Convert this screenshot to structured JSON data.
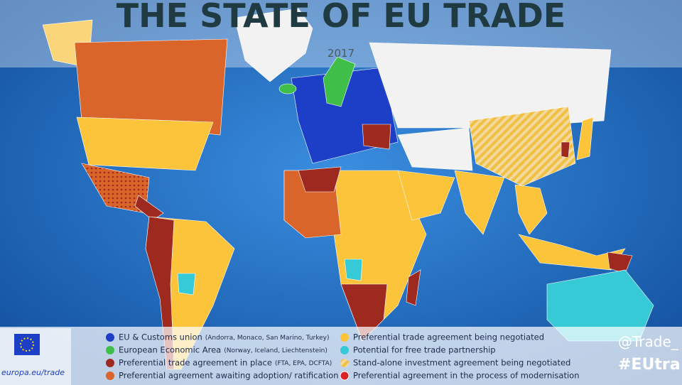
{
  "header": {
    "title": "THE STATE OF EU TRADE",
    "year": "2017"
  },
  "legend": {
    "items": [
      {
        "label": "EU & Customs union",
        "note": "(Andorra, Monaco, San Marino, Turkey)"
      },
      {
        "label": "European Economic Area",
        "note": "(Norway, Iceland, Liechtenstein)"
      },
      {
        "label": "Preferential trade agreement in place",
        "note": "(FTA, EPA, DCFTA)"
      },
      {
        "label": "Preferential agreement awaiting adoption/ ratification"
      },
      {
        "label": "Preferential trade agreement being negotiated"
      },
      {
        "label": "Potential for free trade partnership"
      },
      {
        "label": "Stand-alone investment agreement being negotiated"
      },
      {
        "label": "Preferential agreement in the process of modernisation"
      }
    ]
  },
  "footer": {
    "url": "europa.eu/trade",
    "handle": "@Trade_",
    "hashtag": "#EUtra"
  }
}
